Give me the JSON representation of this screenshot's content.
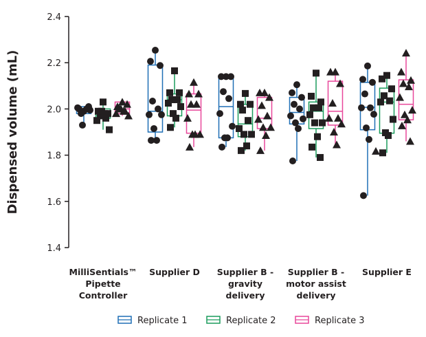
{
  "chart_data": {
    "type": "box",
    "ylabel": "Dispensed volume (mL)",
    "ylim": [
      1.4,
      2.4
    ],
    "yticks": [
      "1.4",
      "1.6",
      "1.8",
      "2.0",
      "2.2",
      "2.4"
    ],
    "grid": false,
    "legend_position": "bottom",
    "series": [
      {
        "name": "Replicate 1",
        "color": "#1f6fb5",
        "marker": "circle"
      },
      {
        "name": "Replicate 2",
        "color": "#1a9b5c",
        "marker": "square"
      },
      {
        "name": "Replicate 3",
        "color": "#e8479a",
        "marker": "triangle"
      }
    ],
    "groups": [
      {
        "label": [
          "MilliSentials™",
          "Pipette",
          "Controller"
        ],
        "replicates": [
          {
            "points": [
              1.99,
              2.0,
              2.01,
              1.98,
              2.0,
              2.005,
              1.995,
              1.93
            ],
            "q1": 1.98,
            "median": 1.995,
            "q3": 2.01,
            "min": 1.93,
            "max": 2.01
          },
          {
            "points": [
              2.03,
              1.99,
              1.98,
              1.97,
              1.96,
              1.95,
              1.91,
              1.99,
              1.98
            ],
            "q1": 1.96,
            "median": 1.97,
            "q3": 2.0,
            "min": 1.91,
            "max": 2.03
          },
          {
            "points": [
              2.03,
              2.01,
              2.02,
              2.0,
              1.99,
              1.98,
              1.97,
              2.0,
              1.99
            ],
            "q1": 1.98,
            "median": 2.0,
            "q3": 2.03,
            "min": 1.97,
            "max": 2.03
          }
        ]
      },
      {
        "label": [
          "Supplier D"
        ],
        "replicates": [
          {
            "points": [
              2.254,
              2.206,
              2.188,
              2.034,
              2.0,
              1.975,
              1.975,
              1.915,
              1.864,
              1.864
            ],
            "q1": 1.9,
            "median": 1.99,
            "q3": 2.19,
            "min": 1.864,
            "max": 2.254
          },
          {
            "points": [
              2.165,
              2.07,
              2.07,
              2.04,
              2.04,
              2.025,
              2.01,
              1.98,
              1.96,
              1.92
            ],
            "q1": 1.97,
            "median": 2.04,
            "q3": 2.065,
            "min": 1.92,
            "max": 2.165
          },
          {
            "points": [
              2.115,
              2.065,
              2.065,
              2.02,
              2.02,
              1.96,
              1.89,
              1.89,
              1.89,
              1.835
            ],
            "q1": 1.895,
            "median": 1.995,
            "q3": 2.065,
            "min": 1.835,
            "max": 2.115
          }
        ]
      },
      {
        "label": [
          "Supplier B -",
          "gravity",
          "delivery"
        ],
        "replicates": [
          {
            "points": [
              2.14,
              2.14,
              2.14,
              2.075,
              2.045,
              1.98,
              1.925,
              1.875,
              1.875,
              1.835
            ],
            "q1": 1.875,
            "median": 2.01,
            "q3": 2.135,
            "min": 1.835,
            "max": 2.14
          },
          {
            "points": [
              2.067,
              2.02,
              2.02,
              1.995,
              1.95,
              1.915,
              1.89,
              1.89,
              1.84,
              1.82
            ],
            "q1": 1.88,
            "median": 1.935,
            "q3": 2.02,
            "min": 1.82,
            "max": 2.067
          },
          {
            "points": [
              2.07,
              2.07,
              2.05,
              2.015,
              1.97,
              1.955,
              1.92,
              1.92,
              1.885,
              1.82
            ],
            "q1": 1.915,
            "median": 1.96,
            "q3": 2.05,
            "min": 1.82,
            "max": 2.07
          }
        ]
      },
      {
        "label": [
          "Supplier B -",
          "motor assist",
          "delivery"
        ],
        "replicates": [
          {
            "points": [
              2.105,
              2.07,
              2.05,
              2.02,
              2.0,
              1.97,
              1.957,
              1.94,
              1.915,
              1.775
            ],
            "q1": 1.935,
            "median": 1.985,
            "q3": 2.05,
            "min": 1.775,
            "max": 2.105
          },
          {
            "points": [
              2.155,
              2.055,
              2.03,
              2.005,
              2.005,
              1.975,
              1.94,
              1.94,
              1.88,
              1.835,
              1.79
            ],
            "q1": 1.915,
            "median": 1.99,
            "q3": 2.03,
            "min": 1.79,
            "max": 2.155
          },
          {
            "points": [
              2.16,
              2.16,
              2.11,
              2.025,
              1.96,
              1.96,
              1.935,
              1.9,
              1.845
            ],
            "q1": 1.93,
            "median": 1.99,
            "q3": 2.12,
            "min": 1.845,
            "max": 2.16
          }
        ]
      },
      {
        "label": [
          "Supplier E"
        ],
        "replicates": [
          {
            "points": [
              2.186,
              2.128,
              2.115,
              2.065,
              2.005,
              2.005,
              1.977,
              1.918,
              1.868,
              1.625
            ],
            "q1": 1.91,
            "median": 2.007,
            "q3": 2.115,
            "min": 1.625,
            "max": 2.186
          },
          {
            "points": [
              2.145,
              2.13,
              2.087,
              2.057,
              2.035,
              2.03,
              1.955,
              1.897,
              1.885,
              1.81
            ],
            "q1": 1.895,
            "median": 2.03,
            "q3": 2.09,
            "min": 1.81,
            "max": 2.145
          },
          {
            "points": [
              2.242,
              2.16,
              2.124,
              2.11,
              2.096,
              2.05,
              1.995,
              1.975,
              1.953,
              1.927,
              1.86
            ],
            "q1": 1.953,
            "median": 2.02,
            "q3": 2.126,
            "min": 1.86,
            "max": 2.242
          }
        ],
        "extra_points": [
          {
            "value": 1.817,
            "marker": "triangle"
          }
        ]
      }
    ]
  }
}
